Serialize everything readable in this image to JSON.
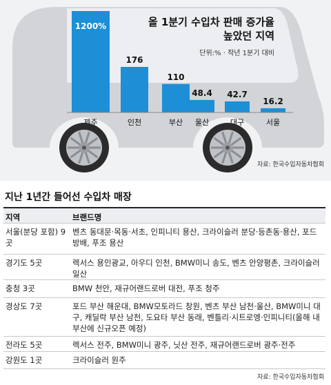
{
  "chart_data": {
    "type": "bar",
    "title_line1": "올 1분기 수입차 판매 증가율",
    "title_line2": "높았던 지역",
    "subtitle": "단위:% · 작년 1분기 대비",
    "categories": [
      "제주",
      "인천",
      "부산",
      "울산",
      "대구",
      "서울"
    ],
    "values": [
      1200,
      176,
      110,
      48.4,
      42.7,
      16.2
    ],
    "value_labels": [
      "1200%",
      "176",
      "110",
      "48.4",
      "42.7",
      "16.2"
    ],
    "source": "자료: 한국수입자동차협회",
    "colors": {
      "bar": "#1c8fd6",
      "car_body": "#d2d4d8",
      "window": "#eceef1"
    }
  },
  "table": {
    "title": "지난 1년간 들어선 수입차 매장",
    "headers": [
      "지역",
      "브랜드명"
    ],
    "rows": [
      {
        "region": "서울(분당 포함) 9곳",
        "stores": "벤츠 동대문·목동·서초, 인피니티 용산, 크라이슬러 분당·등촌동·용산, 포드 방배, 푸조 용산"
      },
      {
        "region": "경기도 5곳",
        "stores": "렉서스 용인광교, 아우디 인천, BMW미니 송도, 벤츠 안양평촌, 크라이슬러 일산"
      },
      {
        "region": "충청 3곳",
        "stores": "BMW 천안, 재규어랜드로버 대전, 푸조 청주"
      },
      {
        "region": "경상도 7곳",
        "stores": "포드 부산 해운대, BMW모토라드 창원, 벤츠 부산 남천·울산, BMW미니 대구, 캐딜락 부산 남천, 도요타 부산 동래, 벤틀리·시트로엥·인피니티(올해 내 부산에 신규오픈 예정)"
      },
      {
        "region": "전라도 5곳",
        "stores": "렉서스 전주, BMW미니 광주, 닛산 전주, 재규어랜드로버 광주·전주"
      },
      {
        "region": "강원도 1곳",
        "stores": "크라이슬러 원주"
      }
    ],
    "source": "자료: 한국수입자동차협회"
  }
}
